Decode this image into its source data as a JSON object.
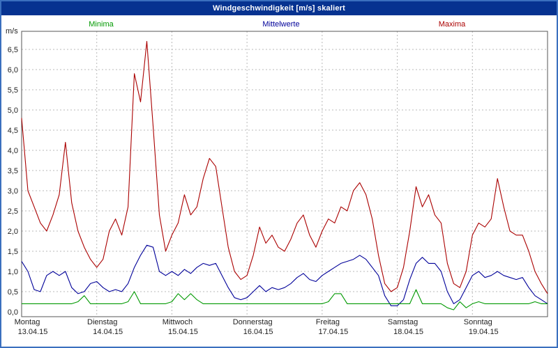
{
  "window": {
    "title": "Windgeschwindigkeit [m/s] skaliert"
  },
  "legend": {
    "items": [
      {
        "label": "Minima",
        "color": "#009900"
      },
      {
        "label": "Mittelwerte",
        "color": "#000099"
      },
      {
        "label": "Maxima",
        "color": "#aa0000"
      }
    ],
    "position": "top"
  },
  "colors": {
    "titlebar_bg": "#063290",
    "titlebar_text": "#ffffff",
    "frame_border": "#3a6fbe",
    "grid": "#b8b8b8",
    "plot_border": "#555555",
    "axis_text": "#222222",
    "maxima": "#aa0000",
    "mittelwerte": "#000099",
    "minima": "#009900"
  },
  "chart_data": {
    "type": "line",
    "title": "Windgeschwindigkeit [m/s] skaliert",
    "xlabel": "",
    "ylabel": "m/s",
    "ylim": [
      0,
      6.95
    ],
    "grid": true,
    "legend_position": "top",
    "x_total_hours": 168,
    "x_step_hours": 2,
    "yticks": [
      0.0,
      0.5,
      1.0,
      1.5,
      2.0,
      2.5,
      3.0,
      3.5,
      4.0,
      4.5,
      5.0,
      5.5,
      6.0,
      6.5
    ],
    "ytick_labels": [
      "0,0",
      "0,5",
      "1,0",
      "1,5",
      "2,0",
      "2,5",
      "3,0",
      "3,5",
      "4,0",
      "4,5",
      "5,0",
      "5,5",
      "6,0",
      "6,5"
    ],
    "days": [
      {
        "name": "Montag",
        "date": "13.04.15"
      },
      {
        "name": "Dienstag",
        "date": "14.04.15"
      },
      {
        "name": "Mittwoch",
        "date": "15.04.15"
      },
      {
        "name": "Donnerstag",
        "date": "16.04.15"
      },
      {
        "name": "Freitag",
        "date": "17.04.15"
      },
      {
        "name": "Samstag",
        "date": "18.04.15"
      },
      {
        "name": "Sonntag",
        "date": "19.04.15"
      }
    ],
    "series": [
      {
        "name": "Maxima",
        "color": "#aa0000",
        "values": [
          4.8,
          3.0,
          2.6,
          2.2,
          2.0,
          2.4,
          2.9,
          4.2,
          2.7,
          2.0,
          1.6,
          1.3,
          1.1,
          1.3,
          2.0,
          2.3,
          1.9,
          2.6,
          5.9,
          5.2,
          6.7,
          4.6,
          2.4,
          1.5,
          1.9,
          2.2,
          2.9,
          2.4,
          2.6,
          3.3,
          3.8,
          3.6,
          2.6,
          1.6,
          1.0,
          0.8,
          0.9,
          1.4,
          2.1,
          1.7,
          1.9,
          1.6,
          1.5,
          1.8,
          2.2,
          2.4,
          1.9,
          1.6,
          2.0,
          2.3,
          2.2,
          2.6,
          2.5,
          3.0,
          3.2,
          2.9,
          2.3,
          1.4,
          0.7,
          0.5,
          0.6,
          1.1,
          2.0,
          3.1,
          2.6,
          2.9,
          2.4,
          2.2,
          1.2,
          0.7,
          0.6,
          1.0,
          1.9,
          2.2,
          2.1,
          2.3,
          3.3,
          2.6,
          2.0,
          1.9,
          1.9,
          1.5,
          1.0,
          0.7,
          0.45
        ]
      },
      {
        "name": "Mittelwerte",
        "color": "#000099",
        "values": [
          1.25,
          1.0,
          0.55,
          0.5,
          0.9,
          1.0,
          0.9,
          1.0,
          0.6,
          0.45,
          0.5,
          0.7,
          0.75,
          0.6,
          0.5,
          0.55,
          0.5,
          0.7,
          1.1,
          1.4,
          1.65,
          1.6,
          1.0,
          0.9,
          1.0,
          0.9,
          1.05,
          0.95,
          1.1,
          1.2,
          1.15,
          1.2,
          0.9,
          0.6,
          0.35,
          0.3,
          0.35,
          0.5,
          0.65,
          0.5,
          0.6,
          0.55,
          0.6,
          0.7,
          0.85,
          0.95,
          0.8,
          0.75,
          0.9,
          1.0,
          1.1,
          1.2,
          1.25,
          1.3,
          1.4,
          1.3,
          1.1,
          0.9,
          0.4,
          0.15,
          0.15,
          0.3,
          0.8,
          1.2,
          1.35,
          1.2,
          1.2,
          1.0,
          0.5,
          0.2,
          0.3,
          0.6,
          0.9,
          1.0,
          0.85,
          0.9,
          1.0,
          0.9,
          0.85,
          0.8,
          0.85,
          0.6,
          0.4,
          0.3,
          0.2
        ]
      },
      {
        "name": "Minima",
        "color": "#009900",
        "values": [
          0.2,
          0.2,
          0.2,
          0.2,
          0.2,
          0.2,
          0.2,
          0.2,
          0.2,
          0.25,
          0.4,
          0.2,
          0.2,
          0.2,
          0.2,
          0.2,
          0.2,
          0.25,
          0.5,
          0.2,
          0.2,
          0.2,
          0.2,
          0.2,
          0.25,
          0.45,
          0.3,
          0.45,
          0.3,
          0.2,
          0.2,
          0.2,
          0.2,
          0.2,
          0.2,
          0.2,
          0.2,
          0.2,
          0.2,
          0.2,
          0.2,
          0.2,
          0.2,
          0.2,
          0.2,
          0.2,
          0.2,
          0.2,
          0.2,
          0.25,
          0.45,
          0.45,
          0.2,
          0.2,
          0.2,
          0.2,
          0.2,
          0.2,
          0.2,
          0.2,
          0.2,
          0.2,
          0.2,
          0.55,
          0.2,
          0.2,
          0.2,
          0.2,
          0.1,
          0.05,
          0.25,
          0.1,
          0.2,
          0.25,
          0.2,
          0.2,
          0.2,
          0.2,
          0.2,
          0.2,
          0.2,
          0.2,
          0.25,
          0.2,
          0.2
        ]
      }
    ]
  }
}
